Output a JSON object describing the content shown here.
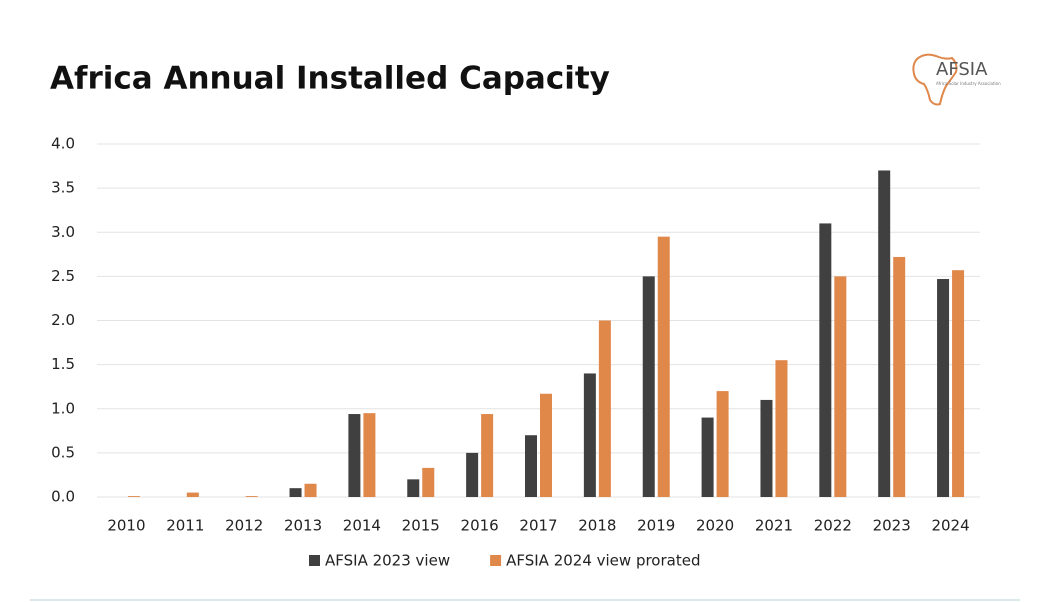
{
  "chart_data": {
    "type": "bar",
    "title": "Africa Annual Installed Capacity",
    "logo": {
      "name": "AFSIA",
      "tagline": "Africa Solar Industry Association"
    },
    "categories": [
      "2010",
      "2011",
      "2012",
      "2013",
      "2014",
      "2015",
      "2016",
      "2017",
      "2018",
      "2019",
      "2020",
      "2021",
      "2022",
      "2023",
      "2024"
    ],
    "series": [
      {
        "name": "AFSIA 2023 view",
        "color": "#404040",
        "values": [
          0,
          0,
          0,
          0.1,
          0.94,
          0.2,
          0.5,
          0.7,
          1.4,
          2.5,
          0.9,
          1.1,
          3.1,
          3.7,
          2.47
        ]
      },
      {
        "name": "AFSIA 2024 view prorated",
        "color": "#e0874a",
        "values": [
          0.01,
          0.05,
          0.01,
          0.15,
          0.95,
          0.33,
          0.94,
          1.17,
          2.0,
          2.95,
          1.2,
          1.55,
          2.5,
          2.72,
          2.57
        ]
      }
    ],
    "ylim": [
      0,
      4
    ],
    "yticks": [
      {
        "value": 0,
        "label": "0.0"
      },
      {
        "value": 0.5,
        "label": "0.5"
      },
      {
        "value": 1,
        "label": "1.0"
      },
      {
        "value": 1.5,
        "label": "1.5"
      },
      {
        "value": 2,
        "label": "2.0"
      },
      {
        "value": 2.5,
        "label": "2.5"
      },
      {
        "value": 3,
        "label": "3.0"
      },
      {
        "value": 3.5,
        "label": "3.5"
      },
      {
        "value": 4,
        "label": "4.0"
      }
    ],
    "grid": true,
    "legend": "bottom"
  }
}
